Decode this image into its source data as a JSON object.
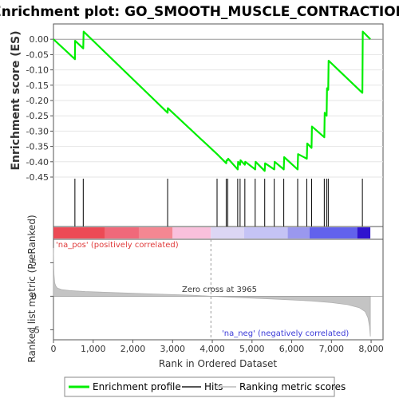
{
  "chart_data": {
    "type": "line",
    "title": "Enrichment plot: GO_SMOOTH_MUSCLE_CONTRACTION",
    "enrichment_panel": {
      "ylabel": "Enrichment score (ES)",
      "ylim": [
        -0.45,
        0.05
      ],
      "yticks": [
        "0.00",
        "-0.05",
        "-0.10",
        "-0.15",
        "-0.20",
        "-0.25",
        "-0.30",
        "-0.35",
        "-0.40",
        "-0.45"
      ],
      "ytick_values": [
        0.0,
        -0.05,
        -0.1,
        -0.15,
        -0.2,
        -0.25,
        -0.3,
        -0.35,
        -0.4,
        -0.45
      ],
      "series_color": "#00ee00",
      "points": [
        [
          0,
          0.0
        ],
        [
          540,
          -0.065
        ],
        [
          545,
          -0.005
        ],
        [
          750,
          -0.03
        ],
        [
          760,
          0.025
        ],
        [
          2875,
          -0.24
        ],
        [
          2880,
          -0.225
        ],
        [
          4120,
          -0.375
        ],
        [
          4350,
          -0.405
        ],
        [
          4360,
          -0.395
        ],
        [
          4390,
          -0.395
        ],
        [
          4400,
          -0.39
        ],
        [
          4640,
          -0.425
        ],
        [
          4650,
          -0.4
        ],
        [
          4700,
          -0.41
        ],
        [
          4710,
          -0.395
        ],
        [
          4820,
          -0.41
        ],
        [
          4830,
          -0.4
        ],
        [
          5080,
          -0.425
        ],
        [
          5090,
          -0.4
        ],
        [
          5320,
          -0.43
        ],
        [
          5330,
          -0.405
        ],
        [
          5560,
          -0.425
        ],
        [
          5570,
          -0.4
        ],
        [
          5800,
          -0.425
        ],
        [
          5810,
          -0.385
        ],
        [
          6150,
          -0.425
        ],
        [
          6160,
          -0.375
        ],
        [
          6380,
          -0.39
        ],
        [
          6390,
          -0.34
        ],
        [
          6500,
          -0.355
        ],
        [
          6510,
          -0.285
        ],
        [
          6820,
          -0.32
        ],
        [
          6830,
          -0.24
        ],
        [
          6880,
          -0.25
        ],
        [
          6890,
          -0.16
        ],
        [
          6920,
          -0.165
        ],
        [
          6930,
          -0.07
        ],
        [
          7780,
          -0.175
        ],
        [
          7790,
          0.025
        ],
        [
          7980,
          0.0
        ]
      ]
    },
    "hits": [
      540,
      750,
      2875,
      4120,
      4350,
      4390,
      4640,
      4700,
      4820,
      5080,
      5320,
      5560,
      5800,
      6150,
      6380,
      6500,
      6820,
      6880,
      6920,
      7780
    ],
    "ranked_panel": {
      "ylabel": "Ranked list metric (PreRanked)",
      "ylim": [
        -6.5,
        8.5
      ],
      "yticks": [
        "5",
        "0",
        "-5"
      ],
      "ytick_values": [
        5,
        0,
        -5
      ],
      "zero_cross_label": "Zero cross at 3965",
      "zero_cross": 3965,
      "pos_label": "'na_pos' (positively correlated)",
      "neg_label": "'na_neg' (negatively correlated)",
      "profile": [
        [
          0,
          7.2
        ],
        [
          5,
          5.5
        ],
        [
          15,
          3.2
        ],
        [
          30,
          2.0
        ],
        [
          60,
          1.5
        ],
        [
          100,
          1.2
        ],
        [
          200,
          1.0
        ],
        [
          400,
          0.85
        ],
        [
          800,
          0.7
        ],
        [
          1500,
          0.55
        ],
        [
          2500,
          0.35
        ],
        [
          3500,
          0.15
        ],
        [
          3965,
          0.0
        ],
        [
          4500,
          -0.15
        ],
        [
          5500,
          -0.4
        ],
        [
          6500,
          -0.7
        ],
        [
          7000,
          -0.95
        ],
        [
          7400,
          -1.25
        ],
        [
          7700,
          -1.7
        ],
        [
          7850,
          -2.3
        ],
        [
          7920,
          -3.2
        ],
        [
          7960,
          -4.5
        ],
        [
          7980,
          -6.0
        ]
      ]
    },
    "xlabel": "Rank in Ordered Dataset",
    "xlim": [
      0,
      8300
    ],
    "xticks": [
      "0",
      "1,000",
      "2,000",
      "3,000",
      "4,000",
      "5,000",
      "6,000",
      "7,000",
      "8,000"
    ],
    "xtick_values": [
      0,
      1000,
      2000,
      3000,
      4000,
      5000,
      6000,
      7000,
      8000
    ],
    "color_bar": [
      {
        "from": 0,
        "to": 1300,
        "color": "#ec4a55"
      },
      {
        "from": 1300,
        "to": 2150,
        "color": "#f0697a"
      },
      {
        "from": 2150,
        "to": 3000,
        "color": "#f48792"
      },
      {
        "from": 3000,
        "to": 3965,
        "color": "#f9c0dc"
      },
      {
        "from": 3965,
        "to": 4800,
        "color": "#dcd6f4"
      },
      {
        "from": 4800,
        "to": 5900,
        "color": "#c5c3f5"
      },
      {
        "from": 5900,
        "to": 6450,
        "color": "#9a98ee"
      },
      {
        "from": 6450,
        "to": 7650,
        "color": "#6262ec"
      },
      {
        "from": 7650,
        "to": 7980,
        "color": "#2f14cf"
      }
    ],
    "legend": {
      "placement": "bottom",
      "items": [
        {
          "label": "Enrichment profile",
          "color": "#00ee00"
        },
        {
          "label": "Hits",
          "color": "#555555"
        },
        {
          "label": "Ranking metric scores",
          "color": "#cccccc"
        }
      ]
    }
  }
}
